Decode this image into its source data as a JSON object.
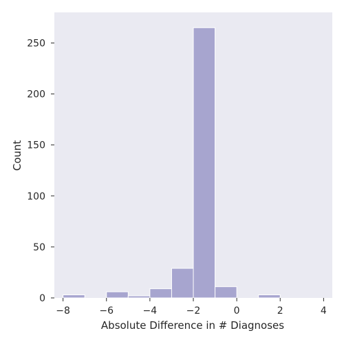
{
  "chart_data": {
    "type": "bar",
    "title": "",
    "xlabel": "Absolute Difference in # Diagnoses",
    "ylabel": "Count",
    "bins": [
      {
        "x0": -8.0,
        "x1": -7.0,
        "count": 3
      },
      {
        "x0": -7.0,
        "x1": -6.0,
        "count": 0
      },
      {
        "x0": -6.0,
        "x1": -5.0,
        "count": 6
      },
      {
        "x0": -5.0,
        "x1": -4.0,
        "count": 2
      },
      {
        "x0": -4.0,
        "x1": -3.0,
        "count": 9
      },
      {
        "x0": -3.0,
        "x1": -2.0,
        "count": 29
      },
      {
        "x0": -2.0,
        "x1": -1.0,
        "count": 265
      },
      {
        "x0": -1.0,
        "x1": 0.0,
        "count": 11
      },
      {
        "x0": 0.0,
        "x1": 1.0,
        "count": 0
      },
      {
        "x0": 1.0,
        "x1": 2.0,
        "count": 3
      }
    ],
    "xlim": [
      -8.4,
      4.4
    ],
    "ylim": [
      0,
      280
    ],
    "xticks": [
      -8,
      -6,
      -4,
      -2,
      0,
      2,
      4
    ],
    "xtick_labels": [
      "−8",
      "−6",
      "−4",
      "−2",
      "0",
      "2",
      "4"
    ],
    "yticks": [
      0,
      50,
      100,
      150,
      200,
      250
    ],
    "ytick_labels": [
      "0",
      "50",
      "100",
      "150",
      "200",
      "250"
    ],
    "grid": false,
    "bar_color": "#a7a5cf",
    "bar_edge_color": "#ffffff",
    "background_color": "#eaeaf2"
  }
}
